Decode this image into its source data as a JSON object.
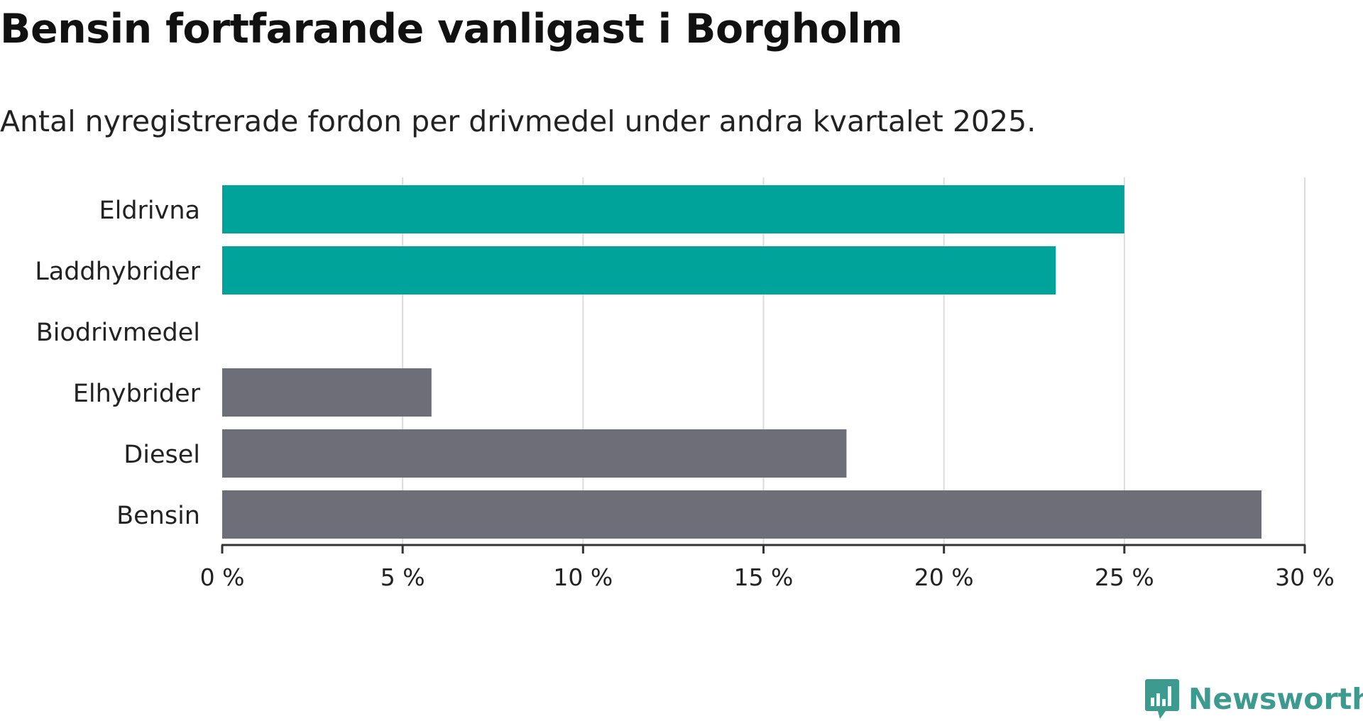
{
  "title": "Bensin fortfarande vanligast i Borgholm",
  "subtitle": "Antal nyregistrerade fordon per drivmedel under andra kvartalet 2025.",
  "brand": {
    "name": "Newsworthy",
    "icon": "newsworthy-logo-icon",
    "color": "#3d9a8e"
  },
  "colors": {
    "highlight": "#00a39a",
    "neutral": "#6e6e78",
    "gridline": "#dcdcdc",
    "axis": "#333333"
  },
  "chart_data": {
    "type": "bar",
    "orientation": "horizontal",
    "categories": [
      "Eldrivna",
      "Laddhybrider",
      "Biodrivmedel",
      "Elhybrider",
      "Diesel",
      "Bensin"
    ],
    "values": [
      25.0,
      23.1,
      0,
      5.8,
      17.3,
      28.8
    ],
    "bar_colors": [
      "#00a39a",
      "#00a39a",
      "#6e6e78",
      "#6e6e78",
      "#6e6e78",
      "#6e6e78"
    ],
    "unit": "%",
    "xlim": [
      0,
      30
    ],
    "xticks": [
      0,
      5,
      10,
      15,
      20,
      25,
      30
    ],
    "xtick_labels": [
      "0 %",
      "5 %",
      "10 %",
      "15 %",
      "20 %",
      "25 %",
      "30 %"
    ],
    "xlabel": "",
    "ylabel": "",
    "grid": true,
    "legend": "none"
  }
}
